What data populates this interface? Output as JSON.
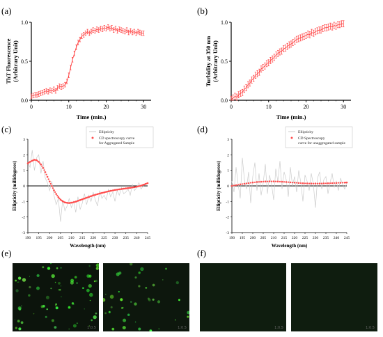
{
  "panels": {
    "a": "(a)",
    "b": "(b)",
    "c": "(c)",
    "d": "(d)",
    "e": "(e)",
    "f": "(f)"
  },
  "micrographs": {
    "scale_text": "1:0.5"
  },
  "chart_data": [
    {
      "id": "a",
      "type": "line",
      "xlabel": "Time (min.)",
      "ylabel": [
        "ThT Fluorescence",
        "(Arbitrary Unit)"
      ],
      "xlim": [
        0,
        32
      ],
      "ylim": [
        0,
        1.0
      ],
      "xticks": [
        0,
        10,
        20,
        30
      ],
      "yticks": [
        0.0,
        0.5,
        1.0
      ],
      "xtick_labels": [
        "0",
        "10",
        "20",
        "30"
      ],
      "ytick_labels": [
        "0.0",
        "0.5",
        "1.0"
      ],
      "color": "#ff3b3b",
      "series": [
        {
          "x": [
            0,
            0.5,
            1,
            1.5,
            2,
            2.5,
            3,
            3.5,
            4,
            4.5,
            5,
            5.5,
            6,
            6.5,
            7,
            7.5,
            8,
            8.5,
            9,
            9.5,
            10,
            10.5,
            11,
            11.5,
            12,
            12.5,
            13,
            13.5,
            14,
            14.5,
            15,
            15.5,
            16,
            16.5,
            17,
            17.5,
            18,
            18.5,
            19,
            19.5,
            20,
            20.5,
            21,
            21.5,
            22,
            22.5,
            23,
            23.5,
            24,
            24.5,
            25,
            25.5,
            26,
            26.5,
            27,
            27.5,
            28,
            28.5,
            29,
            29.5,
            30
          ],
          "y": [
            0.05,
            0.06,
            0.07,
            0.07,
            0.08,
            0.09,
            0.1,
            0.11,
            0.12,
            0.11,
            0.13,
            0.12,
            0.14,
            0.12,
            0.16,
            0.18,
            0.17,
            0.18,
            0.2,
            0.24,
            0.32,
            0.42,
            0.52,
            0.6,
            0.68,
            0.74,
            0.78,
            0.82,
            0.84,
            0.86,
            0.88,
            0.86,
            0.88,
            0.9,
            0.89,
            0.91,
            0.9,
            0.92,
            0.91,
            0.93,
            0.92,
            0.94,
            0.92,
            0.93,
            0.9,
            0.92,
            0.89,
            0.91,
            0.9,
            0.89,
            0.88,
            0.9,
            0.87,
            0.89,
            0.87,
            0.88,
            0.86,
            0.88,
            0.87,
            0.86,
            0.86
          ],
          "err": 0.03
        }
      ]
    },
    {
      "id": "b",
      "type": "line",
      "xlabel": "Time (min.)",
      "ylabel": [
        "Turbidity at 350 nm",
        "(Arbitrary Unit)"
      ],
      "xlim": [
        0,
        32
      ],
      "ylim": [
        0,
        1.0
      ],
      "xticks": [
        0,
        10,
        20,
        30
      ],
      "yticks": [
        0.0,
        0.5,
        1.0
      ],
      "xtick_labels": [
        "0",
        "10",
        "20",
        "30"
      ],
      "ytick_labels": [
        "0.0",
        "0.5",
        "1.0"
      ],
      "color": "#ff3b3b",
      "series": [
        {
          "x": [
            0,
            0.5,
            1,
            1.5,
            2,
            2.5,
            3,
            3.5,
            4,
            4.5,
            5,
            5.5,
            6,
            6.5,
            7,
            7.5,
            8,
            8.5,
            9,
            9.5,
            10,
            10.5,
            11,
            11.5,
            12,
            12.5,
            13,
            13.5,
            14,
            14.5,
            15,
            15.5,
            16,
            16.5,
            17,
            17.5,
            18,
            18.5,
            19,
            19.5,
            20,
            20.5,
            21,
            21.5,
            22,
            22.5,
            23,
            23.5,
            24,
            24.5,
            25,
            25.5,
            26,
            26.5,
            27,
            27.5,
            28,
            28.5,
            29,
            29.5,
            30
          ],
          "y": [
            0.01,
            0.03,
            0.05,
            0.04,
            0.07,
            0.09,
            0.1,
            0.14,
            0.16,
            0.2,
            0.22,
            0.26,
            0.28,
            0.32,
            0.34,
            0.36,
            0.4,
            0.42,
            0.44,
            0.47,
            0.48,
            0.51,
            0.53,
            0.55,
            0.58,
            0.6,
            0.62,
            0.63,
            0.66,
            0.67,
            0.69,
            0.71,
            0.72,
            0.74,
            0.76,
            0.78,
            0.79,
            0.8,
            0.81,
            0.82,
            0.83,
            0.85,
            0.84,
            0.87,
            0.86,
            0.88,
            0.89,
            0.9,
            0.9,
            0.92,
            0.93,
            0.93,
            0.94,
            0.95,
            0.94,
            0.96,
            0.95,
            0.97,
            0.97,
            0.98,
            0.98
          ],
          "err": 0.04
        }
      ]
    },
    {
      "id": "c",
      "type": "line",
      "xlabel": "Wavelength (nm)",
      "ylabel": [
        "Ellipticity (millidegrees)"
      ],
      "xlim": [
        190,
        245
      ],
      "ylim": [
        -3,
        3
      ],
      "xticks": [
        190,
        195,
        200,
        205,
        210,
        215,
        220,
        225,
        230,
        235,
        240,
        245
      ],
      "xtick_labels": [
        "190",
        "195",
        "200",
        "205",
        "210",
        "215",
        "220",
        "225",
        "230",
        "235",
        "240",
        "245"
      ],
      "yticks": [
        -3,
        -2,
        -1,
        0,
        1,
        2,
        3
      ],
      "ytick_labels": [
        "-3",
        "-2",
        "-1",
        "0",
        "1",
        "2",
        "3"
      ],
      "legend": [
        "Ellipticity",
        "CD spectroscopy curve",
        "for Aggregated Sample"
      ],
      "legend_position": "top-right",
      "raw_color": "#cccccc",
      "fit_color": "#ff4d4d",
      "series": [
        {
          "name": "Ellipticity",
          "x": [
            190,
            191,
            192,
            193,
            194,
            195,
            196,
            197,
            198,
            199,
            200,
            201,
            202,
            203,
            204,
            205,
            206,
            207,
            208,
            209,
            210,
            211,
            212,
            213,
            214,
            215,
            216,
            217,
            218,
            219,
            220,
            221,
            222,
            223,
            224,
            225,
            226,
            227,
            228,
            229,
            230,
            231,
            232,
            233,
            234,
            235,
            236,
            237,
            238,
            239,
            240,
            241,
            242,
            243,
            244,
            245
          ],
          "y": [
            1.5,
            1.2,
            2.3,
            1.0,
            1.8,
            2.0,
            0.8,
            1.6,
            0.5,
            0.2,
            -0.3,
            0.3,
            -0.6,
            -1.2,
            -0.8,
            -2.3,
            -0.9,
            -1.6,
            -1.3,
            -0.8,
            -1.4,
            -1.0,
            -1.7,
            -0.7,
            -1.5,
            -1.1,
            -0.5,
            -1.2,
            -0.6,
            -1.0,
            -0.4,
            -0.9,
            -1.3,
            -0.3,
            -0.8,
            -0.6,
            -0.9,
            -0.2,
            -0.7,
            -0.4,
            -1.0,
            -0.3,
            -0.6,
            -0.1,
            -0.5,
            -0.4,
            -0.2,
            -0.6,
            0.1,
            -0.3,
            -0.1,
            0.2,
            -0.2,
            0.0,
            0.1,
            0.2
          ]
        },
        {
          "name": "CD spectroscopy curve for Aggregated Sample",
          "x": [
            190,
            191,
            192,
            193,
            194,
            195,
            196,
            197,
            198,
            199,
            200,
            201,
            202,
            203,
            204,
            205,
            206,
            207,
            208,
            209,
            210,
            211,
            212,
            213,
            214,
            215,
            216,
            217,
            218,
            219,
            220,
            221,
            222,
            223,
            224,
            225,
            226,
            227,
            228,
            229,
            230,
            231,
            232,
            233,
            234,
            235,
            236,
            237,
            238,
            239,
            240,
            241,
            242,
            243,
            244,
            245
          ],
          "y": [
            1.45,
            1.55,
            1.62,
            1.68,
            1.65,
            1.55,
            1.38,
            1.15,
            0.88,
            0.58,
            0.28,
            -0.01,
            -0.28,
            -0.52,
            -0.72,
            -0.88,
            -0.99,
            -1.06,
            -1.09,
            -1.1,
            -1.08,
            -1.05,
            -1.01,
            -0.96,
            -0.91,
            -0.86,
            -0.81,
            -0.76,
            -0.71,
            -0.66,
            -0.61,
            -0.57,
            -0.53,
            -0.49,
            -0.45,
            -0.42,
            -0.38,
            -0.35,
            -0.32,
            -0.29,
            -0.26,
            -0.24,
            -0.22,
            -0.2,
            -0.18,
            -0.16,
            -0.14,
            -0.12,
            -0.1,
            -0.08,
            -0.05,
            -0.02,
            0.02,
            0.07,
            0.12,
            0.18
          ]
        }
      ]
    },
    {
      "id": "d",
      "type": "line",
      "xlabel": "Wavelength (nm)",
      "ylabel": [
        "Ellipticity (millidegrees)"
      ],
      "xlim": [
        190,
        245
      ],
      "ylim": [
        -3,
        3
      ],
      "xticks": [
        190,
        195,
        200,
        205,
        210,
        215,
        220,
        225,
        230,
        235,
        240,
        245
      ],
      "xtick_labels": [
        "190",
        "195",
        "200",
        "205",
        "210",
        "215",
        "220",
        "225",
        "230",
        "235",
        "240",
        "245"
      ],
      "yticks": [
        -3,
        -2,
        -1,
        0,
        1,
        2,
        3
      ],
      "ytick_labels": [
        "-3",
        "-2",
        "-1",
        "0",
        "1",
        "2",
        "3"
      ],
      "legend": [
        "Ellipticity",
        "CD Spectroscopy",
        "curve for unaggregated sample"
      ],
      "legend_position": "top-right",
      "raw_color": "#cccccc",
      "fit_color": "#ff4d4d",
      "series": [
        {
          "name": "Ellipticity",
          "x": [
            190,
            191,
            192,
            193,
            194,
            195,
            196,
            197,
            198,
            199,
            200,
            201,
            202,
            203,
            204,
            205,
            206,
            207,
            208,
            209,
            210,
            211,
            212,
            213,
            214,
            215,
            216,
            217,
            218,
            219,
            220,
            221,
            222,
            223,
            224,
            225,
            226,
            227,
            228,
            229,
            230,
            231,
            232,
            233,
            234,
            235,
            236,
            237,
            238,
            239,
            240,
            241,
            242,
            243,
            244,
            245
          ],
          "y": [
            0.3,
            -0.4,
            1.2,
            0.1,
            -0.8,
            1.8,
            0.4,
            -0.2,
            0.9,
            -1.1,
            0.6,
            1.5,
            -0.3,
            0.8,
            -0.6,
            0.2,
            1.4,
            -0.5,
            0.7,
            0.1,
            -0.9,
            1.1,
            0.3,
            1.6,
            -0.2,
            0.9,
            0.4,
            -0.7,
            1.2,
            0.0,
            0.6,
            -0.4,
            1.0,
            0.2,
            -1.0,
            0.7,
            0.3,
            -0.3,
            0.8,
            0.1,
            -1.4,
            0.5,
            0.9,
            -0.2,
            0.4,
            0.6,
            -0.5,
            0.2,
            0.8,
            -0.1,
            0.3,
            -0.3,
            0.5,
            0.1,
            -0.2,
            0.2
          ]
        },
        {
          "name": "CD Spectroscopy curve for unaggregated sample",
          "x": [
            190,
            192,
            194,
            196,
            198,
            200,
            202,
            204,
            206,
            208,
            210,
            212,
            214,
            216,
            218,
            220,
            222,
            224,
            226,
            228,
            230,
            232,
            234,
            236,
            238,
            240,
            242,
            244,
            245
          ],
          "y": [
            0.0,
            0.05,
            0.1,
            0.14,
            0.18,
            0.22,
            0.25,
            0.27,
            0.28,
            0.29,
            0.29,
            0.28,
            0.27,
            0.25,
            0.23,
            0.21,
            0.19,
            0.17,
            0.16,
            0.15,
            0.15,
            0.15,
            0.16,
            0.17,
            0.18,
            0.19,
            0.2,
            0.21,
            0.22
          ]
        }
      ]
    }
  ]
}
